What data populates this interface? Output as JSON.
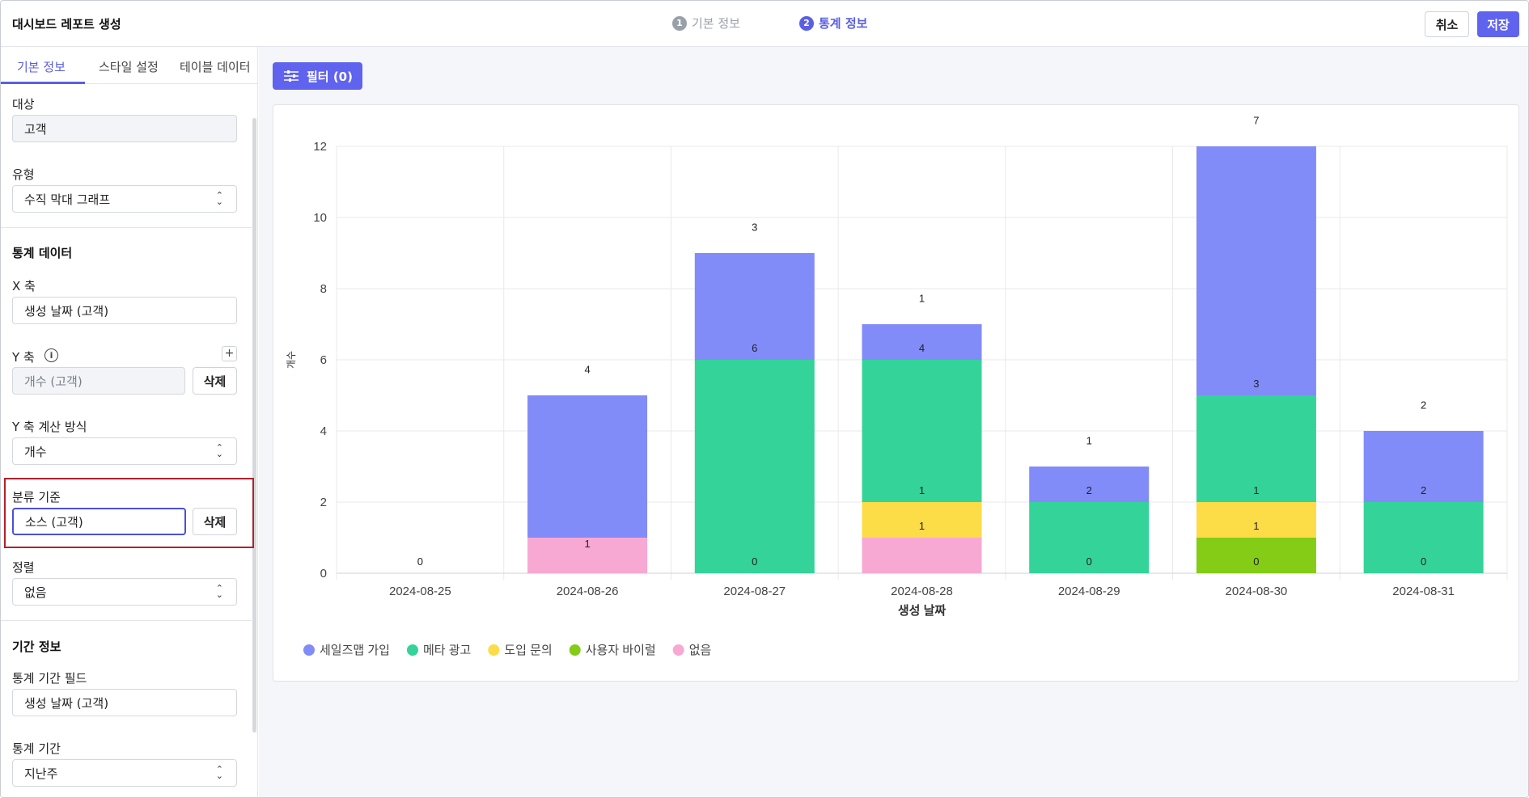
{
  "header": {
    "title": "대시보드 레포트 생성",
    "steps": [
      {
        "num": "1",
        "label": "기본 정보"
      },
      {
        "num": "2",
        "label": "통계 정보"
      }
    ],
    "cancel_label": "취소",
    "save_label": "저장"
  },
  "sidebar": {
    "tabs": [
      "기본 정보",
      "스타일 설정",
      "테이블 데이터"
    ],
    "target": {
      "label": "대상",
      "value": "고객"
    },
    "type": {
      "label": "유형",
      "value": "수직 막대 그래프"
    },
    "stats_section": "통계 데이터",
    "x_axis": {
      "label": "X 축",
      "value": "생성 날짜 (고객)"
    },
    "y_axis": {
      "label": "Y 축",
      "value": "개수 (고객)",
      "delete_label": "삭제"
    },
    "y_calc": {
      "label": "Y 축 계산 방식",
      "value": "개수"
    },
    "group_by": {
      "label": "분류 기준",
      "value": "소스 (고객)",
      "delete_label": "삭제"
    },
    "sort": {
      "label": "정렬",
      "value": "없음"
    },
    "period_section": "기간 정보",
    "period_field": {
      "label": "통계 기간 필드",
      "value": "생성 날짜 (고객)"
    },
    "period": {
      "label": "통계 기간",
      "value": "지난주"
    }
  },
  "main": {
    "filter_label": "필터 (0)"
  },
  "chart_data": {
    "type": "bar",
    "stacked": true,
    "categories": [
      "2024-08-25",
      "2024-08-26",
      "2024-08-27",
      "2024-08-28",
      "2024-08-29",
      "2024-08-30",
      "2024-08-31"
    ],
    "xlabel": "생성 날짜",
    "ylabel": "개수",
    "ylim": [
      0,
      12
    ],
    "yticks": [
      0,
      2,
      4,
      6,
      8,
      10,
      12
    ],
    "grid": true,
    "legend_position": "bottom-left",
    "series": [
      {
        "name": "없음",
        "color": "#f7a8d3",
        "values": [
          0,
          1,
          0,
          1,
          0,
          0,
          0
        ]
      },
      {
        "name": "사용자 바이럴",
        "color": "#84cc16",
        "values": [
          0,
          0,
          0,
          0,
          0,
          1,
          0
        ]
      },
      {
        "name": "도입 문의",
        "color": "#fcdc47",
        "values": [
          0,
          0,
          0,
          1,
          0,
          1,
          0
        ]
      },
      {
        "name": "메타 광고",
        "color": "#34d399",
        "values": [
          0,
          0,
          6,
          4,
          2,
          3,
          2
        ]
      },
      {
        "name": "세일즈맵 가입",
        "color": "#818cf8",
        "values": [
          0,
          4,
          3,
          1,
          1,
          7,
          2
        ]
      }
    ],
    "legend_order": [
      "세일즈맵 가입",
      "메타 광고",
      "도입 문의",
      "사용자 바이럴",
      "없음"
    ],
    "data_labels": [
      [
        {
          "text": "0",
          "at": 0
        }
      ],
      [
        {
          "text": "1",
          "at": 0.5
        },
        {
          "text": "4",
          "at": 5.4
        }
      ],
      [
        {
          "text": "0",
          "at": 0
        },
        {
          "text": "6",
          "at": 6
        },
        {
          "text": "3",
          "at": 9.4
        }
      ],
      [
        {
          "text": "1",
          "at": 1
        },
        {
          "text": "1",
          "at": 2
        },
        {
          "text": "4",
          "at": 6
        },
        {
          "text": "1",
          "at": 7.4
        }
      ],
      [
        {
          "text": "0",
          "at": 0
        },
        {
          "text": "2",
          "at": 2
        },
        {
          "text": "1",
          "at": 3.4
        }
      ],
      [
        {
          "text": "0",
          "at": 0
        },
        {
          "text": "1",
          "at": 1
        },
        {
          "text": "1",
          "at": 2
        },
        {
          "text": "3",
          "at": 5
        },
        {
          "text": "7",
          "at": 12.4
        }
      ],
      [
        {
          "text": "0",
          "at": 0
        },
        {
          "text": "2",
          "at": 2
        },
        {
          "text": "2",
          "at": 4.4
        }
      ]
    ]
  }
}
